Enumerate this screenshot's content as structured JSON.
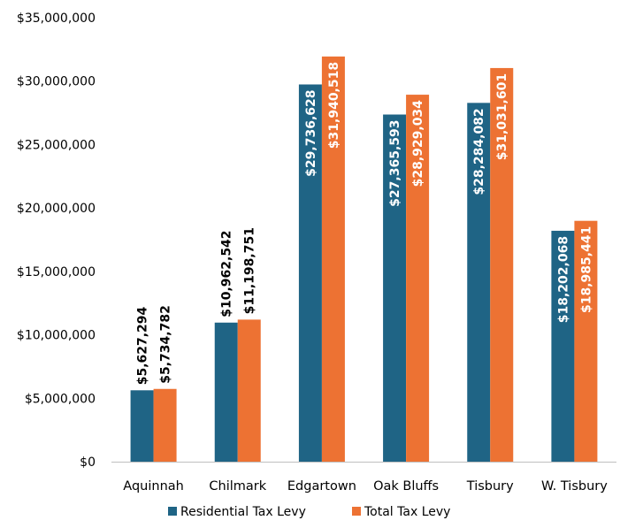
{
  "chart_data": {
    "type": "bar",
    "title": "",
    "xlabel": "",
    "ylabel": "",
    "categories": [
      "Aquinnah",
      "Chilmark",
      "Edgartown",
      "Oak Bluffs",
      "Tisbury",
      "W. Tisbury"
    ],
    "series": [
      {
        "name": "Residential Tax Levy",
        "color": "#1F6485",
        "values": [
          5627294,
          10962542,
          29736628,
          27365593,
          28284082,
          18202068
        ],
        "labels": [
          "$5,627,294",
          "$10,962,542",
          "$29,736,628",
          "$27,365,593",
          "$28,284,082",
          "$18,202,068"
        ]
      },
      {
        "name": "Total Tax Levy",
        "color": "#ED7233",
        "values": [
          5734782,
          11198751,
          31940518,
          28929034,
          31031601,
          18985441
        ],
        "labels": [
          "$5,734,782",
          "$11,198,751",
          "$31,940,518",
          "$28,929,034",
          "$31,031,601",
          "$18,985,441"
        ]
      }
    ],
    "ylim": [
      0,
      35000000
    ],
    "yticks": [
      0,
      5000000,
      10000000,
      15000000,
      20000000,
      25000000,
      30000000,
      35000000
    ],
    "ytick_labels": [
      "$0",
      "$5,000,000",
      "$10,000,000",
      "$15,000,000",
      "$20,000,000",
      "$25,000,000",
      "$30,000,000",
      "$35,000,000"
    ],
    "grid": false,
    "legend": "bottom",
    "label_placement": [
      "outside-end",
      "outside-end",
      "inside-end",
      "inside-end",
      "inside-end",
      "inside-end"
    ]
  }
}
